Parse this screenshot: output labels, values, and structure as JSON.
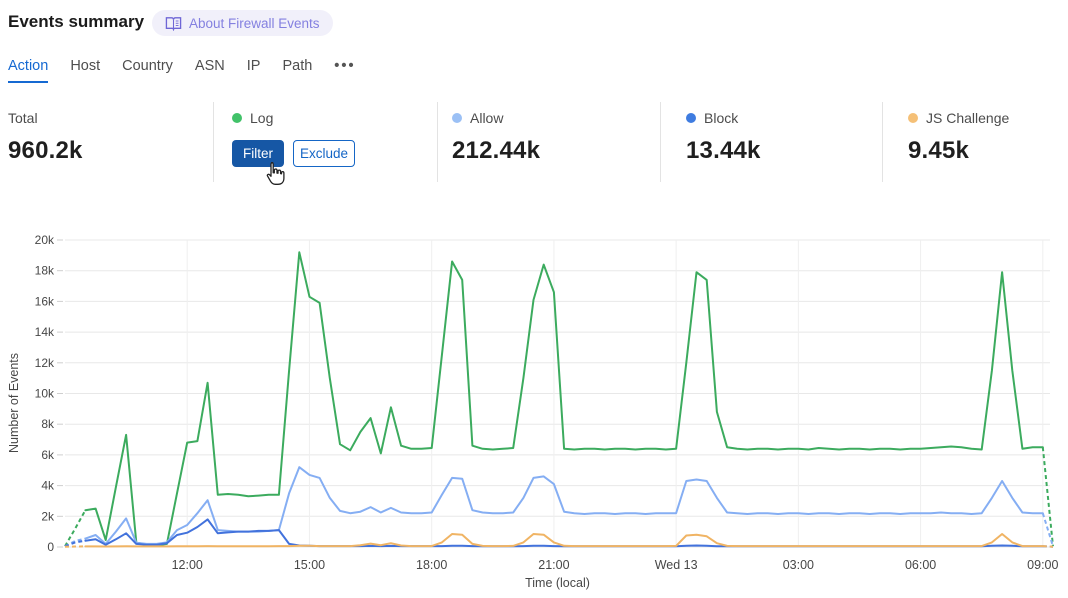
{
  "header": {
    "title": "Events summary",
    "about_badge_label": "About Firewall Events"
  },
  "tabs": {
    "items": [
      {
        "label": "Action",
        "active": true
      },
      {
        "label": "Host",
        "active": false
      },
      {
        "label": "Country",
        "active": false
      },
      {
        "label": "ASN",
        "active": false
      },
      {
        "label": "IP",
        "active": false
      },
      {
        "label": "Path",
        "active": false
      }
    ],
    "more_label": "•••"
  },
  "stats": {
    "total": {
      "label": "Total",
      "value": "960.2k"
    },
    "log": {
      "label": "Log",
      "dot_color": "#41c269",
      "filter_label": "Filter",
      "exclude_label": "Exclude"
    },
    "allow": {
      "label": "Allow",
      "value": "212.44k",
      "dot_color": "#9bc0f5"
    },
    "block": {
      "label": "Block",
      "value": "13.44k",
      "dot_color": "#3f7ce0"
    },
    "js_challenge": {
      "label": "JS Challenge",
      "value": "9.45k",
      "dot_color": "#f5c077"
    }
  },
  "chart_data": {
    "type": "line",
    "xlabel": "Time (local)",
    "ylabel": "Number of Events",
    "ylim": [
      0,
      20000
    ],
    "grid": true,
    "x_start": "09:00",
    "x_interval_minutes": 15,
    "x_tick_indices": [
      12,
      24,
      36,
      48,
      60,
      72,
      84,
      96
    ],
    "x_tick_labels": [
      "12:00",
      "15:00",
      "18:00",
      "21:00",
      "Wed 13",
      "03:00",
      "06:00",
      "09:00"
    ],
    "y_tick_step": 2000,
    "y_tick_labels": [
      "0",
      "2k",
      "4k",
      "6k",
      "8k",
      "10k",
      "12k",
      "14k",
      "16k",
      "18k",
      "20k"
    ],
    "dashed_head_until_index": 2,
    "dashed_tail_from_index": 96,
    "values_unit": "thousands of events",
    "series": [
      {
        "name": "Log",
        "color": "#3cab5e",
        "values_k": [
          0.05,
          1.2,
          2.4,
          2.5,
          0.45,
          3.9,
          7.3,
          0.3,
          0.13,
          0.1,
          0.2,
          3.5,
          6.8,
          6.9,
          10.7,
          3.4,
          3.45,
          3.4,
          3.3,
          3.35,
          3.4,
          3.4,
          11.5,
          19.2,
          16.3,
          15.9,
          11.0,
          6.7,
          6.3,
          7.5,
          8.4,
          6.1,
          9.1,
          6.6,
          6.4,
          6.4,
          6.45,
          12.5,
          18.6,
          17.4,
          6.6,
          6.4,
          6.35,
          6.4,
          6.45,
          11.0,
          16.1,
          18.4,
          16.6,
          6.4,
          6.35,
          6.4,
          6.4,
          6.35,
          6.4,
          6.4,
          6.35,
          6.4,
          6.4,
          6.35,
          6.4,
          12.0,
          17.9,
          17.4,
          8.8,
          6.5,
          6.4,
          6.35,
          6.4,
          6.4,
          6.35,
          6.4,
          6.4,
          6.35,
          6.45,
          6.4,
          6.35,
          6.4,
          6.4,
          6.35,
          6.4,
          6.4,
          6.35,
          6.4,
          6.4,
          6.45,
          6.5,
          6.55,
          6.5,
          6.4,
          6.35,
          11.5,
          17.9,
          11.5,
          6.4,
          6.5,
          6.5,
          0.05
        ]
      },
      {
        "name": "Allow",
        "color": "#85aef3",
        "values_k": [
          0.05,
          0.4,
          0.55,
          0.78,
          0.2,
          1.0,
          1.86,
          0.28,
          0.2,
          0.2,
          0.3,
          1.1,
          1.43,
          2.2,
          3.05,
          1.1,
          1.05,
          1.0,
          1.0,
          1.0,
          1.05,
          1.1,
          3.5,
          5.2,
          4.7,
          4.5,
          3.2,
          2.35,
          2.2,
          2.3,
          2.6,
          2.25,
          2.55,
          2.25,
          2.2,
          2.2,
          2.25,
          3.4,
          4.5,
          4.45,
          2.4,
          2.25,
          2.2,
          2.2,
          2.25,
          3.2,
          4.5,
          4.6,
          4.1,
          2.3,
          2.2,
          2.15,
          2.2,
          2.2,
          2.15,
          2.2,
          2.2,
          2.15,
          2.2,
          2.2,
          2.2,
          4.3,
          4.4,
          4.3,
          3.2,
          2.25,
          2.2,
          2.15,
          2.2,
          2.2,
          2.15,
          2.2,
          2.2,
          2.15,
          2.2,
          2.2,
          2.15,
          2.2,
          2.2,
          2.15,
          2.2,
          2.2,
          2.15,
          2.2,
          2.2,
          2.2,
          2.25,
          2.2,
          2.2,
          2.15,
          2.2,
          3.2,
          4.3,
          3.2,
          2.25,
          2.2,
          2.2,
          0.05
        ]
      },
      {
        "name": "Block",
        "color": "#4272dc",
        "values_k": [
          0.05,
          0.3,
          0.41,
          0.5,
          0.15,
          0.5,
          0.89,
          0.2,
          0.15,
          0.15,
          0.25,
          0.78,
          0.93,
          1.3,
          1.8,
          0.89,
          0.95,
          1.0,
          1.0,
          1.05,
          1.05,
          1.1,
          0.2,
          0.1,
          0.08,
          0.06,
          0.06,
          0.06,
          0.06,
          0.06,
          0.07,
          0.06,
          0.07,
          0.06,
          0.06,
          0.06,
          0.06,
          0.06,
          0.08,
          0.08,
          0.06,
          0.05,
          0.05,
          0.05,
          0.05,
          0.06,
          0.08,
          0.08,
          0.06,
          0.05,
          0.05,
          0.05,
          0.05,
          0.05,
          0.05,
          0.05,
          0.05,
          0.05,
          0.05,
          0.05,
          0.05,
          0.08,
          0.1,
          0.08,
          0.05,
          0.05,
          0.05,
          0.05,
          0.05,
          0.05,
          0.05,
          0.05,
          0.05,
          0.05,
          0.05,
          0.05,
          0.05,
          0.05,
          0.05,
          0.05,
          0.05,
          0.05,
          0.05,
          0.05,
          0.05,
          0.05,
          0.05,
          0.05,
          0.05,
          0.05,
          0.05,
          0.08,
          0.1,
          0.08,
          0.05,
          0.05,
          0.05,
          0.02
        ]
      },
      {
        "name": "JS Challenge",
        "color": "#f0b464",
        "values_k": [
          0.02,
          0.03,
          0.04,
          0.04,
          0.03,
          0.04,
          0.05,
          0.04,
          0.04,
          0.04,
          0.04,
          0.05,
          0.05,
          0.05,
          0.06,
          0.05,
          0.05,
          0.05,
          0.05,
          0.05,
          0.05,
          0.06,
          0.06,
          0.08,
          0.08,
          0.06,
          0.06,
          0.06,
          0.06,
          0.12,
          0.22,
          0.12,
          0.25,
          0.1,
          0.06,
          0.06,
          0.06,
          0.3,
          0.85,
          0.8,
          0.2,
          0.07,
          0.06,
          0.06,
          0.07,
          0.3,
          0.85,
          0.8,
          0.3,
          0.08,
          0.06,
          0.06,
          0.06,
          0.06,
          0.06,
          0.06,
          0.06,
          0.06,
          0.06,
          0.06,
          0.07,
          0.75,
          0.8,
          0.7,
          0.25,
          0.07,
          0.06,
          0.06,
          0.06,
          0.06,
          0.06,
          0.06,
          0.06,
          0.06,
          0.06,
          0.06,
          0.06,
          0.06,
          0.06,
          0.06,
          0.06,
          0.06,
          0.06,
          0.06,
          0.06,
          0.06,
          0.06,
          0.06,
          0.06,
          0.06,
          0.06,
          0.3,
          0.85,
          0.3,
          0.06,
          0.06,
          0.06,
          0.02
        ]
      }
    ]
  }
}
